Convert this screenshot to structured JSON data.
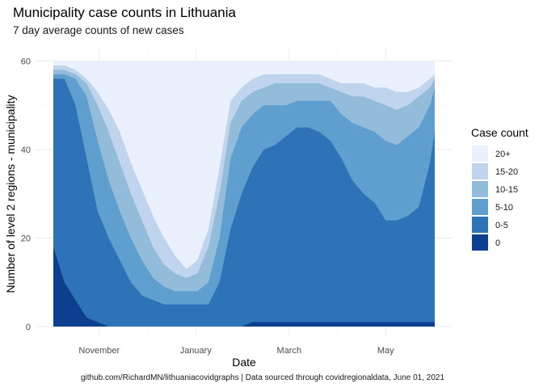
{
  "chart_data": {
    "type": "area",
    "stacked": true,
    "title": "Municipality case counts in Lithuania",
    "subtitle": "7 day average counts of new cases",
    "xlabel": "Date",
    "ylabel": "Number of level 2 regions - municipality",
    "caption": "github.com/RichardMN/lithuaniacovidgraphs | Data sourced through covidregionaldata, June 01, 2021",
    "x_tick_labels": [
      "November",
      "January",
      "March",
      "May"
    ],
    "x_tick_dates": [
      "2020-11-01",
      "2021-01-01",
      "2021-03-01",
      "2021-05-01"
    ],
    "xlim": [
      "2020-10-03",
      "2021-06-01"
    ],
    "y_ticks": [
      0,
      20,
      40,
      60
    ],
    "ylim": [
      0,
      61
    ],
    "grid": true,
    "legend": {
      "title": "Case count",
      "position": "right",
      "entries": [
        {
          "label": "20+",
          "color": "#eaf1fd"
        },
        {
          "label": "15-20",
          "color": "#c0d5ed"
        },
        {
          "label": "10-15",
          "color": "#93bcdb"
        },
        {
          "label": "5-10",
          "color": "#5f9fcf"
        },
        {
          "label": "0-5",
          "color": "#2e72b7"
        },
        {
          "label": "0",
          "color": "#0c3f8e"
        }
      ]
    },
    "series_note": "values are cumulative upper boundaries of each band, bottom to top: 0, 0-5, 5-10, 10-15, 15-20, 20+",
    "x": [
      "2020-10-03",
      "2020-10-10",
      "2020-10-17",
      "2020-10-24",
      "2020-10-31",
      "2020-11-07",
      "2020-11-14",
      "2020-11-21",
      "2020-11-28",
      "2020-12-05",
      "2020-12-12",
      "2020-12-19",
      "2020-12-26",
      "2021-01-02",
      "2021-01-09",
      "2021-01-16",
      "2021-01-23",
      "2021-01-30",
      "2021-02-06",
      "2021-02-13",
      "2021-02-20",
      "2021-02-27",
      "2021-03-06",
      "2021-03-13",
      "2021-03-20",
      "2021-03-27",
      "2021-04-03",
      "2021-04-10",
      "2021-04-17",
      "2021-04-24",
      "2021-05-01",
      "2021-05-08",
      "2021-05-15",
      "2021-05-22",
      "2021-05-29",
      "2021-06-01"
    ],
    "series": [
      {
        "name": "0",
        "values": [
          18,
          10,
          6,
          2,
          1,
          0,
          0,
          0,
          0,
          0,
          0,
          0,
          0,
          0,
          0,
          0,
          0,
          0,
          1,
          1,
          1,
          1,
          1,
          1,
          1,
          1,
          1,
          1,
          1,
          1,
          1,
          1,
          1,
          1,
          1,
          1
        ]
      },
      {
        "name": "0-5",
        "values": [
          56,
          56,
          50,
          38,
          26,
          20,
          15,
          10,
          7,
          6,
          5,
          5,
          5,
          5,
          5,
          10,
          22,
          30,
          36,
          40,
          41,
          43,
          45,
          45,
          44,
          42,
          38,
          33,
          30,
          28,
          24,
          24,
          25,
          27,
          37,
          44
        ]
      },
      {
        "name": "5-10",
        "values": [
          57,
          57,
          56,
          52,
          42,
          33,
          26,
          20,
          15,
          11,
          9,
          8,
          8,
          8,
          10,
          20,
          38,
          45,
          48,
          50,
          50,
          50,
          51,
          51,
          51,
          51,
          48,
          46,
          45,
          44,
          42,
          41,
          43,
          45,
          50,
          54
        ]
      },
      {
        "name": "10-15",
        "values": [
          58,
          58,
          57,
          55,
          50,
          44,
          37,
          30,
          24,
          18,
          14,
          12,
          11,
          12,
          18,
          30,
          46,
          51,
          53,
          54,
          55,
          55,
          55,
          55,
          55,
          54,
          53,
          52,
          52,
          51,
          50,
          49,
          50,
          52,
          54,
          56
        ]
      },
      {
        "name": "15-20",
        "values": [
          59,
          59,
          58,
          56,
          53,
          49,
          44,
          37,
          31,
          25,
          20,
          16,
          13,
          15,
          22,
          36,
          51,
          54,
          56,
          57,
          57,
          57,
          57,
          57,
          57,
          56,
          55,
          55,
          55,
          54,
          54,
          53,
          53,
          54,
          56,
          57
        ]
      },
      {
        "name": "20+",
        "values": [
          60,
          60,
          60,
          60,
          60,
          60,
          60,
          60,
          60,
          60,
          60,
          60,
          60,
          60,
          60,
          60,
          60,
          60,
          60,
          60,
          60,
          60,
          60,
          60,
          60,
          60,
          60,
          60,
          60,
          60,
          60,
          60,
          60,
          60,
          60,
          60
        ]
      }
    ]
  }
}
